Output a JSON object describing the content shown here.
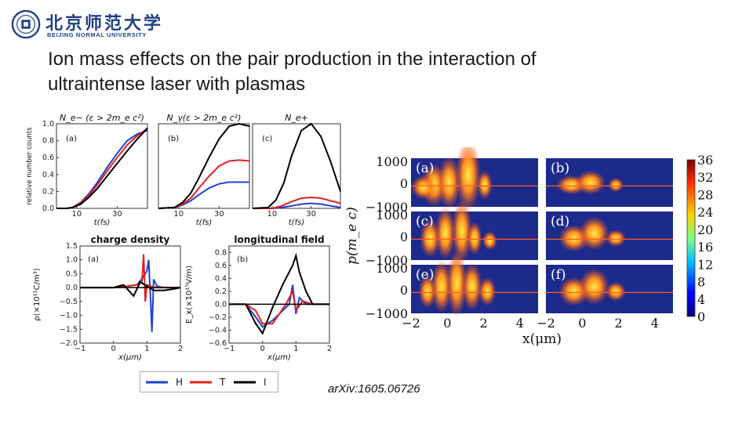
{
  "logo": {
    "name_cn": "北京师范大学",
    "name_en": "BEIJING NORMAL UNIVERSITY",
    "seal_icon": "university-seal-icon",
    "color": "#1f3f86"
  },
  "slide": {
    "title_line1": "Ion mass effects on the pair production in the interaction of",
    "title_line2": "ultraintense laser with plasmas",
    "citation": "arXiv:1605.06726"
  },
  "chart_data": [
    {
      "type": "line",
      "panel": "(a)",
      "title": "N_e− (ε > 2m_e c²)",
      "xlabel": "t(fs)",
      "ylabel": "relative number counts",
      "xticks": [
        "10",
        "30"
      ],
      "yticks": [
        "0.0",
        "0.2",
        "0.4",
        "0.6",
        "0.8",
        "1.0"
      ],
      "xlim": [
        0,
        45
      ],
      "ylim": [
        0,
        1.0
      ],
      "series": [
        {
          "color": "#2040d0",
          "x": [
            0,
            5,
            8,
            12,
            16,
            20,
            25,
            30,
            35,
            40,
            45
          ],
          "y": [
            0,
            0,
            0.01,
            0.07,
            0.17,
            0.3,
            0.48,
            0.65,
            0.8,
            0.88,
            0.92
          ]
        },
        {
          "color": "#e02020",
          "x": [
            0,
            5,
            8,
            12,
            16,
            20,
            25,
            30,
            35,
            40,
            45
          ],
          "y": [
            0,
            0,
            0.01,
            0.06,
            0.15,
            0.27,
            0.44,
            0.6,
            0.75,
            0.86,
            0.94
          ]
        },
        {
          "color": "#000000",
          "x": [
            0,
            5,
            8,
            12,
            16,
            20,
            25,
            30,
            35,
            40,
            45
          ],
          "y": [
            0,
            0,
            0.01,
            0.05,
            0.13,
            0.23,
            0.38,
            0.53,
            0.68,
            0.82,
            0.95
          ]
        }
      ]
    },
    {
      "type": "line",
      "panel": "(b)",
      "title": "N_γ(ε > 2m_e c²)",
      "xlabel": "t(fs)",
      "xticks": [
        "10",
        "30"
      ],
      "xlim": [
        0,
        45
      ],
      "ylim": [
        0,
        1.0
      ],
      "series": [
        {
          "color": "#2040d0",
          "x": [
            0,
            8,
            12,
            16,
            20,
            25,
            30,
            35,
            40,
            45
          ],
          "y": [
            0,
            0.01,
            0.04,
            0.09,
            0.16,
            0.24,
            0.29,
            0.31,
            0.31,
            0.31
          ]
        },
        {
          "color": "#e02020",
          "x": [
            0,
            8,
            12,
            16,
            20,
            25,
            30,
            35,
            40,
            45
          ],
          "y": [
            0,
            0.01,
            0.05,
            0.12,
            0.24,
            0.38,
            0.5,
            0.56,
            0.57,
            0.56
          ]
        },
        {
          "color": "#000000",
          "x": [
            0,
            8,
            12,
            16,
            20,
            25,
            30,
            35,
            40,
            45
          ],
          "y": [
            0,
            0.01,
            0.07,
            0.18,
            0.36,
            0.6,
            0.82,
            0.97,
            1.0,
            0.97
          ]
        }
      ]
    },
    {
      "type": "line",
      "panel": "(c)",
      "title": "N_e+",
      "xlabel": "t(fs)",
      "xticks": [
        "10",
        "30"
      ],
      "xlim": [
        0,
        45
      ],
      "ylim": [
        0,
        1.0
      ],
      "series": [
        {
          "color": "#2040d0",
          "x": [
            0,
            10,
            15,
            20,
            25,
            30,
            35,
            40,
            45
          ],
          "y": [
            0,
            0,
            0.01,
            0.03,
            0.05,
            0.06,
            0.05,
            0.03,
            0.01
          ]
        },
        {
          "color": "#e02020",
          "x": [
            0,
            10,
            15,
            20,
            25,
            30,
            35,
            40,
            45
          ],
          "y": [
            0,
            0,
            0.03,
            0.08,
            0.12,
            0.13,
            0.12,
            0.09,
            0.06
          ]
        },
        {
          "color": "#000000",
          "x": [
            0,
            8,
            12,
            16,
            20,
            25,
            30,
            35,
            40,
            45
          ],
          "y": [
            0,
            0.01,
            0.1,
            0.3,
            0.62,
            0.92,
            1.0,
            0.85,
            0.55,
            0.2
          ]
        }
      ]
    },
    {
      "type": "line",
      "panel": "(a)",
      "title": "charge density",
      "xlabel": "x(μm)",
      "ylabel": "ρ(×10¹¹C/m³)",
      "xticks": [
        "−1",
        "0",
        "1",
        "2"
      ],
      "yticks": [
        "−2.0",
        "−1.5",
        "−1.0",
        "−0.5",
        "0.0",
        "0.5",
        "1.0",
        "1.5"
      ],
      "xlim": [
        -1,
        2
      ],
      "ylim": [
        -2.0,
        1.5
      ],
      "series": [
        {
          "color": "#2040d0",
          "x": [
            -1,
            0,
            0.4,
            0.7,
            0.9,
            1.0,
            1.05,
            1.1,
            1.15,
            1.2,
            1.3,
            1.5,
            2
          ],
          "y": [
            0,
            0,
            0.05,
            0.1,
            0.4,
            0.6,
            1.0,
            -0.2,
            -1.6,
            0.3,
            0.05,
            0,
            0
          ]
        },
        {
          "color": "#e02020",
          "x": [
            -1,
            0,
            0.4,
            0.7,
            0.85,
            0.9,
            0.95,
            1.0,
            1.1,
            1.3,
            2
          ],
          "y": [
            0,
            0,
            0.05,
            0.1,
            0.2,
            1.2,
            -0.5,
            0.1,
            0.05,
            0,
            0
          ]
        },
        {
          "color": "#000000",
          "x": [
            -1,
            0,
            0.3,
            0.6,
            0.8,
            1.2,
            1.5,
            1.8,
            2
          ],
          "y": [
            0,
            0,
            0.1,
            -0.3,
            0.2,
            -0.1,
            -0.1,
            -0.05,
            0
          ]
        }
      ]
    },
    {
      "type": "line",
      "panel": "(b)",
      "title": "longitudinal field",
      "xlabel": "x(μm)",
      "ylabel": "E_x(×10¹⁵V/m)",
      "xticks": [
        "−1",
        "0",
        "1",
        "2"
      ],
      "yticks": [
        "−0.6",
        "−0.4",
        "−0.2",
        "0.0",
        "0.2",
        "0.4",
        "0.6",
        "0.8"
      ],
      "xlim": [
        -1,
        2
      ],
      "ylim": [
        -0.6,
        0.9
      ],
      "series": [
        {
          "color": "#2040d0",
          "x": [
            -1,
            -0.5,
            -0.2,
            0,
            0.3,
            0.6,
            0.8,
            0.9,
            1.0,
            1.1,
            1.3,
            1.6,
            2
          ],
          "y": [
            0,
            0,
            -0.2,
            -0.35,
            -0.25,
            -0.1,
            0.0,
            0.3,
            -0.15,
            0.1,
            0.0,
            0,
            0
          ]
        },
        {
          "color": "#e02020",
          "x": [
            -1,
            -0.5,
            -0.2,
            0,
            0.3,
            0.5,
            0.7,
            0.9,
            1.0,
            1.2,
            1.5,
            2
          ],
          "y": [
            0,
            0,
            -0.1,
            -0.3,
            -0.3,
            -0.15,
            0.0,
            0.2,
            -0.1,
            0.05,
            0,
            0
          ]
        },
        {
          "color": "#000000",
          "x": [
            -1,
            -0.5,
            -0.2,
            0,
            0.3,
            0.6,
            0.9,
            1.0,
            1.1,
            1.3,
            1.5,
            2
          ],
          "y": [
            0,
            0,
            -0.3,
            -0.45,
            -0.05,
            0.3,
            0.6,
            0.75,
            0.5,
            0.2,
            0,
            0
          ]
        }
      ]
    },
    {
      "type": "heatmap",
      "xlabel": "x(μm)",
      "ylabel": "p(m_e c)",
      "xticks": [
        "−2",
        "0",
        "2",
        "4"
      ],
      "yticks": [
        "1000",
        "0",
        "−1000"
      ],
      "panels": [
        "(a)",
        "(b)",
        "(c)",
        "(d)",
        "(e)",
        "(f)"
      ],
      "colorbar_ticks": [
        "36",
        "32",
        "28",
        "24",
        "20",
        "16",
        "12",
        "8",
        "4",
        "0"
      ],
      "xlim": [
        -2,
        5
      ],
      "ylim": [
        -1000,
        1000
      ],
      "background_color": "#1c2a8c"
    }
  ],
  "legend": {
    "items": [
      {
        "label": "H",
        "color": "#2040d0"
      },
      {
        "label": "T",
        "color": "#e02020"
      },
      {
        "label": "I",
        "color": "#000000"
      }
    ]
  }
}
